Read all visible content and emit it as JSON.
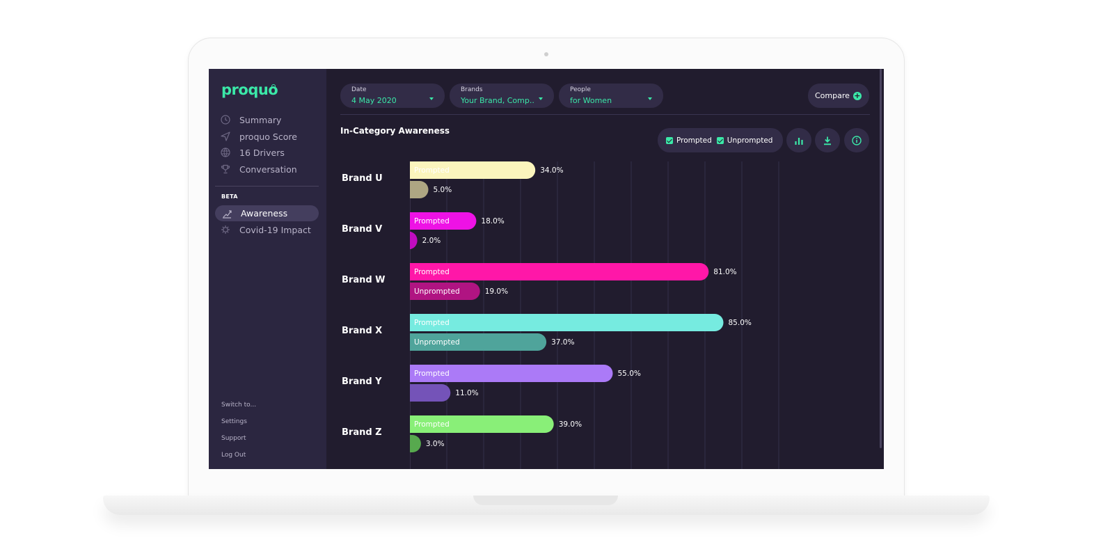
{
  "app": {
    "logo_text": "proquo",
    "sidebar": {
      "nav": [
        {
          "label": "Summary",
          "icon": "clock-icon"
        },
        {
          "label": "proquo Score",
          "icon": "send-icon"
        },
        {
          "label": "16 Drivers",
          "icon": "globe-icon"
        },
        {
          "label": "Conversation",
          "icon": "trophy-icon"
        }
      ],
      "beta_label": "BETA",
      "beta_nav": [
        {
          "label": "Awareness",
          "icon": "trend-icon",
          "active": true
        },
        {
          "label": "Covid-19 Impact",
          "icon": "virus-icon",
          "active": false
        }
      ],
      "footer": [
        "Switch to...",
        "Settings",
        "Support",
        "Log Out"
      ]
    },
    "filters": [
      {
        "label": "Date",
        "value": "4 May 2020"
      },
      {
        "label": "Brands",
        "value": "Your Brand, Comp..."
      },
      {
        "label": "People",
        "value": "for Women"
      }
    ],
    "compare_label": "Compare",
    "section_title": "In-Category Awareness",
    "legend": {
      "prompted": "Prompted",
      "unprompted": "Unprompted"
    },
    "colors": {
      "accent": "#3be8a8",
      "background": "#211c2e",
      "sidebar": "#2b2640"
    }
  },
  "chart_data": {
    "type": "bar",
    "orientation": "horizontal",
    "title": "In-Category Awareness",
    "categories": [
      "Brand U",
      "Brand V",
      "Brand W",
      "Brand X",
      "Brand Y",
      "Brand Z"
    ],
    "series": [
      {
        "name": "Prompted",
        "values": [
          34.0,
          18.0,
          81.0,
          85.0,
          55.0,
          39.0
        ]
      },
      {
        "name": "Unprompted",
        "values": [
          5.0,
          2.0,
          19.0,
          37.0,
          11.0,
          3.0
        ]
      }
    ],
    "value_labels": {
      "Prompted": [
        "34.0%",
        "18.0%",
        "81.0%",
        "85.0%",
        "55.0%",
        "39.0%"
      ],
      "Unprompted": [
        "5.0%",
        "2.0%",
        "19.0%",
        "37.0%",
        "11.0%",
        "3.0%"
      ]
    },
    "bar_text": {
      "Prompted": [
        "Prompted",
        "Prompted",
        "Prompted",
        "Prompted",
        "Prompted",
        "Prompted"
      ],
      "Unprompted": [
        "",
        "",
        "Unprompted",
        "Unprompted",
        "",
        ""
      ]
    },
    "colors": {
      "Prompted": [
        "#fbf5bd",
        "#ee12e5",
        "#ff17a8",
        "#76ebe0",
        "#ab7af7",
        "#89ef78"
      ],
      "Unprompted": [
        "#aea683",
        "#c10cc0",
        "#b01482",
        "#4fa49b",
        "#7453b8",
        "#57a94e"
      ]
    },
    "xlim": [
      0,
      100
    ],
    "grid": true,
    "legend_position": "top-right"
  }
}
